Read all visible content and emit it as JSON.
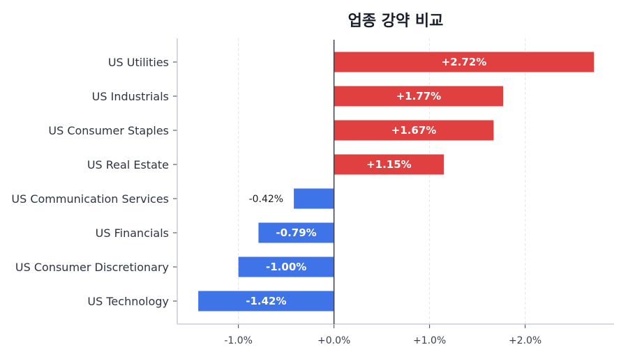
{
  "chart_data": {
    "type": "bar",
    "orientation": "horizontal",
    "title": "업종 강약 비교",
    "categories": [
      "US Utilities",
      "US Industrials",
      "US Consumer Staples",
      "US Real Estate",
      "US Communication Services",
      "US Financials",
      "US Consumer Discretionary",
      "US Technology"
    ],
    "values": [
      2.72,
      1.77,
      1.67,
      1.15,
      -0.42,
      -0.79,
      -1.0,
      -1.42
    ],
    "data_labels": [
      "+2.72%",
      "+1.77%",
      "+1.67%",
      "+1.15%",
      "-0.42%",
      "-0.79%",
      "-1.00%",
      "-1.42%"
    ],
    "xlim": [
      -1.64,
      2.93
    ],
    "xticks": [
      -1,
      0,
      1,
      2
    ],
    "xtick_labels": [
      "-1.0%",
      "+0.0%",
      "+1.0%",
      "+2.0%"
    ],
    "xlabel": "",
    "ylabel": "",
    "grid": "vertical dashed",
    "colors": {
      "positive": "#e04040",
      "negative": "#3f74e8",
      "zero_line": "#3a3f4b",
      "axis": "#c8cbd8"
    }
  }
}
